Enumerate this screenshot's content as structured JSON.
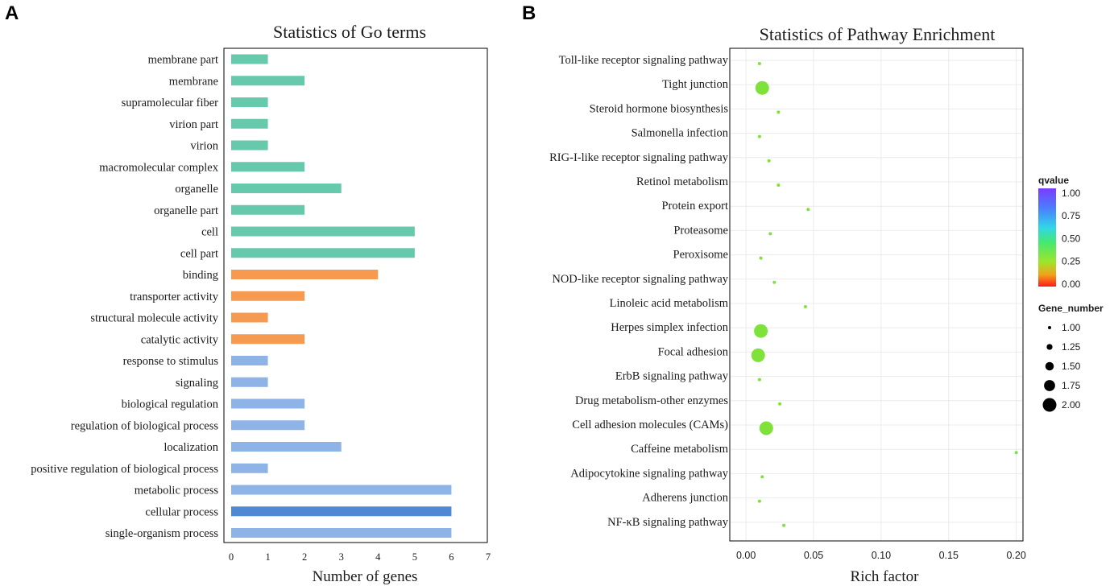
{
  "panel_labels": [
    "A",
    "B"
  ],
  "chart_data": [
    {
      "type": "bar",
      "orientation": "horizontal",
      "title": "Statistics of Go terms",
      "xlabel": "Number of genes",
      "ylabel": "",
      "xlim": [
        0,
        7
      ],
      "xticks": [
        "0",
        "1",
        "2",
        "3",
        "4",
        "5",
        "6",
        "7"
      ],
      "categories": [
        "membrane part",
        "membrane",
        "supramolecular fiber",
        "virion part",
        "virion",
        "macromolecular complex",
        "organelle",
        "organelle part",
        "cell",
        "cell part",
        "binding",
        "transporter activity",
        "structural molecule activity",
        "catalytic activity",
        "response to stimulus",
        "signaling",
        "biological regulation",
        "regulation of biological process",
        "localization",
        "positive regulation of biological process",
        "metabolic process",
        "cellular process",
        "single-organism process"
      ],
      "values": [
        1,
        2,
        1,
        1,
        1,
        2,
        3,
        2,
        5,
        5,
        4,
        2,
        1,
        2,
        1,
        1,
        2,
        2,
        3,
        1,
        6,
        6,
        6
      ],
      "groups": [
        "cc",
        "cc",
        "cc",
        "cc",
        "cc",
        "cc",
        "cc",
        "cc",
        "cc",
        "cc",
        "mf",
        "mf",
        "mf",
        "mf",
        "bp",
        "bp",
        "bp",
        "bp",
        "bp",
        "bp",
        "bp",
        "bp_dark",
        "bp"
      ],
      "colors": {
        "cc": "#66c9ab",
        "mf": "#f59a50",
        "bp": "#8eb3e6",
        "bp_dark": "#4f88d3"
      }
    },
    {
      "type": "scatter",
      "title": "Statistics of Pathway Enrichment",
      "xlabel": "Rich factor",
      "ylabel": "",
      "xlim": [
        -0.012,
        0.205
      ],
      "xticks": [
        0,
        0.05,
        0.1,
        0.15,
        0.2
      ],
      "xtick_labels": [
        "0.00",
        "0.05",
        "0.10",
        "0.15",
        "0.20"
      ],
      "categories": [
        "Toll-like receptor signaling pathway",
        "Tight junction",
        "Steroid hormone biosynthesis",
        "Salmonella infection",
        "RIG-I-like receptor signaling pathway",
        "Retinol metabolism",
        "Protein export",
        "Proteasome",
        "Peroxisome",
        "NOD-like receptor signaling pathway",
        "Linoleic acid metabolism",
        "Herpes simplex infection",
        "Focal adhesion",
        "ErbB signaling pathway",
        "Drug metabolism-other enzymes",
        "Cell adhesion molecules (CAMs)",
        "Caffeine metabolism",
        "Adipocytokine signaling pathway",
        "Adherens junction",
        "NF-κB signaling pathway"
      ],
      "rich_factor": [
        0.01,
        0.012,
        0.024,
        0.01,
        0.017,
        0.024,
        0.046,
        0.018,
        0.011,
        0.021,
        0.044,
        0.011,
        0.009,
        0.01,
        0.025,
        0.015,
        0.2,
        0.012,
        0.01,
        0.028
      ],
      "gene_number": [
        1,
        2,
        1,
        1,
        1,
        1,
        1,
        1,
        1,
        1,
        1,
        2,
        2,
        1,
        1,
        2,
        1,
        1,
        1,
        1
      ],
      "qvalue": [
        0.3,
        0.3,
        0.3,
        0.3,
        0.3,
        0.3,
        0.3,
        0.3,
        0.3,
        0.3,
        0.3,
        0.3,
        0.3,
        0.3,
        0.3,
        0.3,
        0.3,
        0.3,
        0.3,
        0.3
      ],
      "grid": true,
      "legend": {
        "placement": "right",
        "qvalue_title": "qvalue",
        "qvalue_ticks": [
          "1.00",
          "0.75",
          "0.50",
          "0.25",
          "0.00"
        ],
        "gene_title": "Gene_number",
        "gene_ticks": [
          "1.00",
          "1.25",
          "1.50",
          "1.75",
          "2.00"
        ]
      },
      "colors": {
        "point": "#7ee23a",
        "grid": "#ebebeb"
      }
    }
  ]
}
